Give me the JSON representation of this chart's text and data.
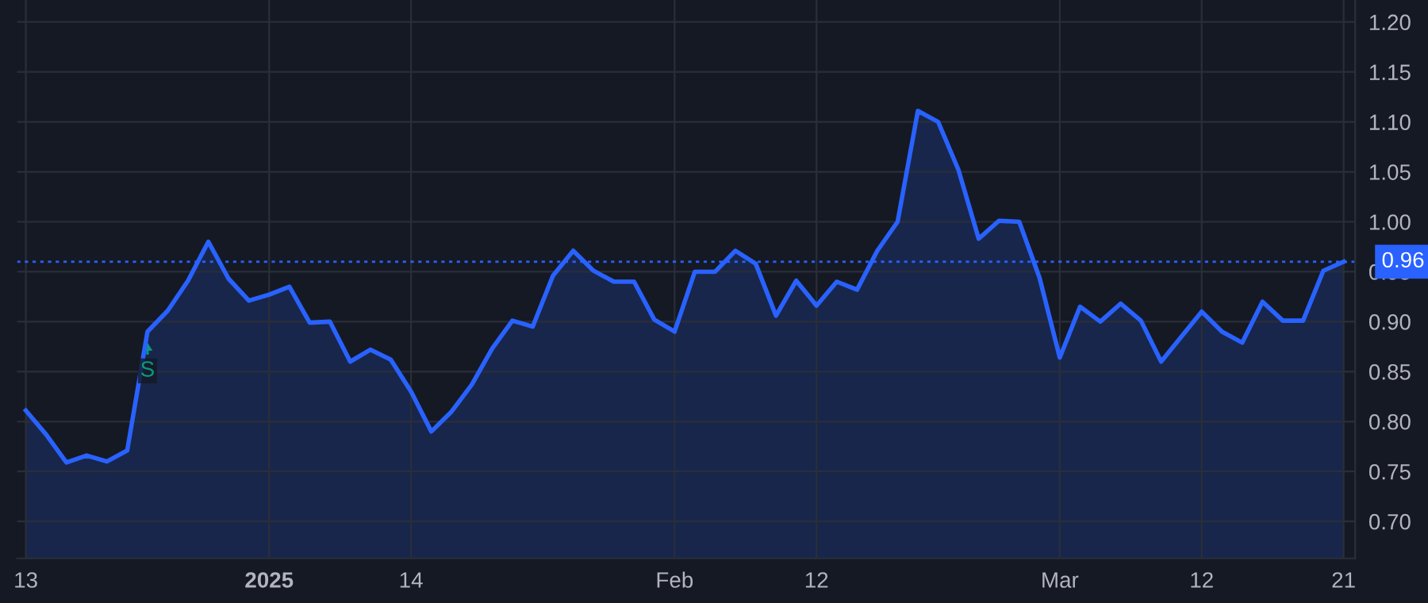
{
  "chart_data": {
    "type": "area",
    "categories": [
      "13",
      null,
      null,
      null,
      null,
      null,
      null,
      null,
      null,
      null,
      null,
      null,
      "2025",
      null,
      null,
      null,
      null,
      null,
      null,
      "14",
      null,
      null,
      null,
      null,
      null,
      null,
      null,
      null,
      null,
      null,
      null,
      null,
      "Feb",
      null,
      null,
      null,
      null,
      null,
      null,
      "12",
      null,
      null,
      null,
      null,
      null,
      null,
      null,
      null,
      null,
      null,
      null,
      "Mar",
      null,
      null,
      null,
      null,
      null,
      null,
      "12",
      null,
      null,
      null,
      null,
      null,
      null,
      "21"
    ],
    "series": [
      {
        "color": "#2962ff",
        "values": [
          0.811,
          0.787,
          0.759,
          0.766,
          0.76,
          0.771,
          0.89,
          0.911,
          0.941,
          0.98,
          0.943,
          0.921,
          0.927,
          0.935,
          0.899,
          0.9,
          0.86,
          0.872,
          0.862,
          0.83,
          0.79,
          0.81,
          0.837,
          0.873,
          0.901,
          0.895,
          0.946,
          0.971,
          0.951,
          0.94,
          0.94,
          0.902,
          0.89,
          0.95,
          0.95,
          0.971,
          0.958,
          0.906,
          0.941,
          0.916,
          0.94,
          0.932,
          0.971,
          1.0,
          1.111,
          1.1,
          1.052,
          0.983,
          1.001,
          1.0,
          0.944,
          0.864,
          0.915,
          0.9,
          0.918,
          0.901,
          0.86,
          0.885,
          0.91,
          0.89,
          0.879,
          0.92,
          0.901,
          0.901,
          0.951,
          0.96
        ]
      }
    ],
    "ylim": [
      0.663,
      1.222
    ],
    "yticks": [
      {
        "value": 0.7,
        "label": "0.70"
      },
      0.75,
      {
        "value": 0.8,
        "label": "0.80"
      },
      0.85,
      {
        "value": 0.9,
        "label": "0.90"
      },
      0.95,
      {
        "value": 1.0,
        "label": "1.00"
      },
      1.05,
      {
        "value": 1.1,
        "label": "1.10"
      },
      1.15,
      {
        "value": 1.2,
        "label": "1.20"
      }
    ],
    "grid": true,
    "ref_lines": [
      {
        "axis": "y",
        "value": 0.96,
        "label": "0.96",
        "color": "#2962ff",
        "line_style": "dotted"
      }
    ],
    "annotations": [
      {
        "text": "S",
        "y": 0.875
      }
    ]
  }
}
